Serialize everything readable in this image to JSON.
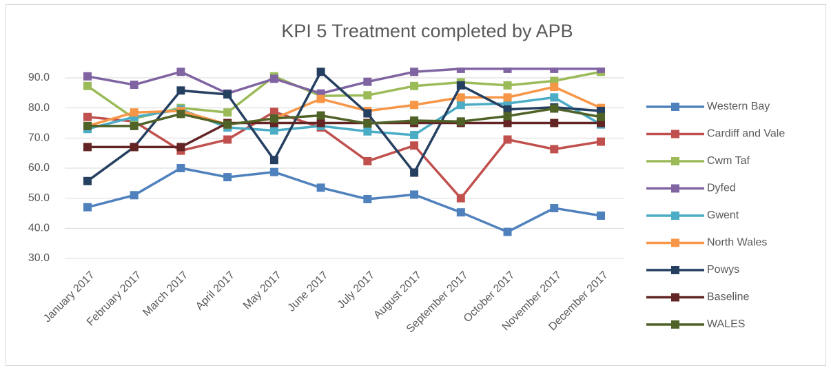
{
  "chart_data": {
    "type": "line",
    "title": "KPI 5 Treatment completed by APB",
    "categories": [
      "January 2017",
      "February 2017",
      "March 2017",
      "April 2017",
      "May 2017",
      "June 2017",
      "July 2017",
      "August 2017",
      "September 2017",
      "October 2017",
      "November 2017",
      "December 2017"
    ],
    "series": [
      {
        "name": "Western Bay",
        "color": "#4f81bd",
        "values": [
          47,
          51,
          60,
          57,
          58.7,
          53.5,
          49.7,
          51.2,
          45.3,
          38.8,
          46.7,
          44.2
        ]
      },
      {
        "name": "Cardiff and Vale",
        "color": "#c0504d",
        "values": [
          77,
          75.5,
          65.8,
          69.5,
          78.7,
          73.5,
          62.3,
          67.5,
          50,
          69.5,
          66.3,
          68.8
        ]
      },
      {
        "name": "Cwm Taf",
        "color": "#9bbb59",
        "values": [
          87.3,
          76.5,
          80,
          78.5,
          90.5,
          84,
          84.2,
          87.3,
          88.5,
          87.5,
          89,
          92
        ]
      },
      {
        "name": "Dyfed",
        "color": "#8064a2",
        "values": [
          90.5,
          87.7,
          92,
          84.8,
          89.7,
          84.8,
          88.7,
          92,
          93,
          93,
          93,
          93
        ]
      },
      {
        "name": "Gwent",
        "color": "#4bacc6",
        "values": [
          73,
          77,
          79.5,
          73.5,
          72.5,
          74,
          72.2,
          71,
          81,
          81.5,
          83.5,
          74.5
        ]
      },
      {
        "name": "North Wales",
        "color": "#f79646",
        "values": [
          74,
          78.5,
          79,
          74.5,
          76.5,
          83,
          79,
          81,
          83.5,
          83.5,
          87,
          80
        ]
      },
      {
        "name": "Powys",
        "color": "#243f60",
        "values": [
          55.7,
          67,
          85.8,
          84.5,
          62.7,
          92,
          78.2,
          58.5,
          87.5,
          79.5,
          80.2,
          79
        ]
      },
      {
        "name": "Baseline",
        "color": "#632523",
        "values": [
          67,
          67,
          67,
          75,
          75,
          75,
          75,
          75,
          75,
          75,
          75,
          75
        ]
      },
      {
        "name": "WALES",
        "color": "#4f6228",
        "values": [
          74,
          74,
          78,
          74.5,
          76.5,
          77.5,
          74.8,
          75.8,
          75.5,
          77.3,
          79.8,
          77
        ]
      }
    ],
    "ylim": [
      30,
      90
    ],
    "yticks": [
      {
        "value": 30,
        "label": "30.0"
      },
      {
        "value": 40,
        "label": "40.0"
      },
      {
        "value": 50,
        "label": "50.0"
      },
      {
        "value": 60,
        "label": "60.0"
      },
      {
        "value": 70,
        "label": "70.0"
      },
      {
        "value": 80,
        "label": "80.0"
      },
      {
        "value": 90,
        "label": "90.0"
      }
    ],
    "legend": "right"
  }
}
